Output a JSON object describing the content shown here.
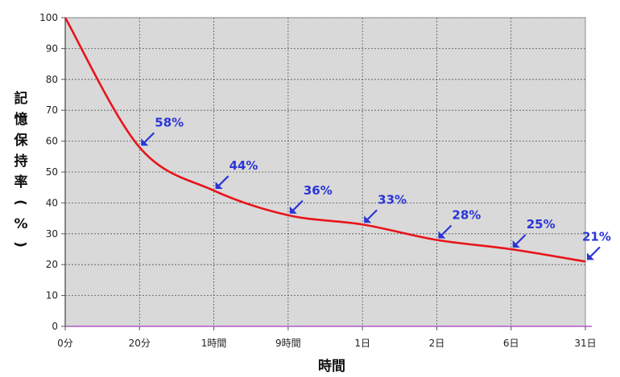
{
  "chart_data": {
    "type": "line",
    "title": "",
    "xlabel": "時間",
    "ylabel": "記憶保持率(%)",
    "ylim": [
      0,
      100
    ],
    "ytick_step": 10,
    "categories": [
      "0分",
      "20分",
      "1時間",
      "9時間",
      "1日",
      "2日",
      "6日",
      "31日"
    ],
    "series": [
      {
        "values": [
          100,
          58,
          44,
          36,
          33,
          28,
          25,
          21
        ]
      }
    ],
    "annotations": [
      "58%",
      "44%",
      "36%",
      "33%",
      "28%",
      "25%",
      "21%"
    ],
    "grid": true,
    "colors": {
      "line": "#e8141b",
      "annotation": "#2b35d6",
      "plot_bg": "#d9d9d9"
    }
  }
}
